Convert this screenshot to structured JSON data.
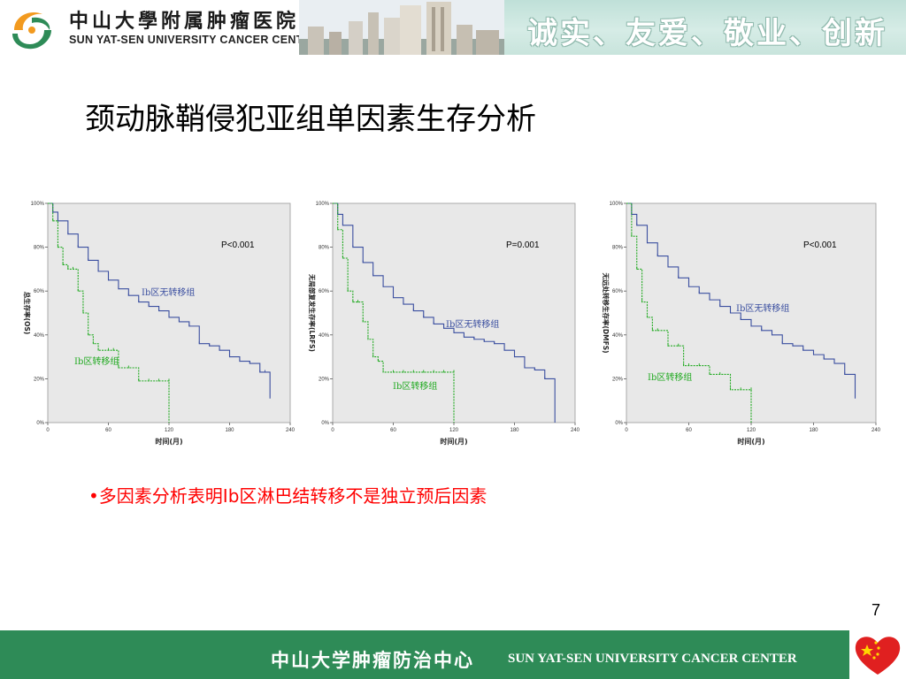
{
  "header": {
    "org_cn": "中山大學附属肿瘤医院",
    "org_en": "SUN YAT-SEN UNIVERSITY CANCER CENTER",
    "motto": "诚实、友爱、敬业、创新"
  },
  "title": "颈动脉鞘侵犯亚组单因素生存分析",
  "bullet": "•多因素分析表明Ⅰb区淋巴结转移不是独立预后因素",
  "page_number": "7",
  "footer": {
    "cn": "中山大学肿瘤防治中心",
    "en": "SUN YAT-SEN UNIVERSITY CANCER CENTER"
  },
  "colors": {
    "blue": "#3b4fa0",
    "green": "#22aa22",
    "panel": "#e8e8e8",
    "footer": "#2e8b57",
    "bullet": "#ff0000"
  },
  "chart_data": [
    {
      "type": "line",
      "ylabel": "总生存率(OS)",
      "xlabel": "时间(月)",
      "pvalue": "P<0.001",
      "xlim": [
        0,
        240
      ],
      "ylim": [
        0,
        100
      ],
      "xticks": [
        "0",
        "60",
        "120",
        "180",
        "240"
      ],
      "yticks": [
        "0%",
        "20%",
        "40%",
        "60%",
        "80%",
        "100%"
      ],
      "series": [
        {
          "name": "Ⅰb区无转移组",
          "color": "#3b4fa0",
          "x": [
            0,
            5,
            10,
            20,
            30,
            40,
            50,
            60,
            70,
            80,
            90,
            100,
            110,
            120,
            130,
            140,
            150,
            160,
            170,
            180,
            190,
            200,
            210,
            215,
            220
          ],
          "y": [
            100,
            96,
            92,
            86,
            80,
            74,
            69,
            65,
            61,
            58,
            55,
            53,
            51,
            48,
            46,
            44,
            36,
            35,
            33,
            30,
            28,
            27,
            23,
            23,
            11
          ]
        },
        {
          "name": "Ⅰb区转移组",
          "color": "#22aa22",
          "x": [
            0,
            5,
            10,
            15,
            20,
            25,
            30,
            35,
            40,
            45,
            50,
            60,
            65,
            70,
            80,
            90,
            100,
            110,
            120,
            120
          ],
          "y": [
            100,
            92,
            80,
            72,
            70,
            70,
            60,
            50,
            40,
            36,
            33,
            33,
            33,
            25,
            25,
            19,
            19,
            19,
            19,
            0
          ]
        }
      ]
    },
    {
      "type": "line",
      "ylabel": "无局部复发生存率(LRFS)",
      "xlabel": "时间(月)",
      "pvalue": "P=0.001",
      "xlim": [
        0,
        240
      ],
      "ylim": [
        0,
        100
      ],
      "xticks": [
        "0",
        "60",
        "120",
        "180",
        "240"
      ],
      "yticks": [
        "0%",
        "20%",
        "40%",
        "60%",
        "80%",
        "100%"
      ],
      "series": [
        {
          "name": "Ⅰb区无转移组",
          "color": "#3b4fa0",
          "x": [
            0,
            5,
            10,
            20,
            30,
            40,
            50,
            60,
            70,
            80,
            90,
            100,
            110,
            120,
            130,
            140,
            150,
            160,
            170,
            180,
            190,
            200,
            210,
            220
          ],
          "y": [
            100,
            95,
            90,
            80,
            73,
            67,
            62,
            57,
            54,
            51,
            48,
            45,
            43,
            41,
            39,
            38,
            37,
            36,
            33,
            30,
            25,
            24,
            20,
            0
          ]
        },
        {
          "name": "Ⅰb区转移组",
          "color": "#22aa22",
          "x": [
            0,
            5,
            10,
            15,
            20,
            25,
            30,
            35,
            40,
            45,
            50,
            60,
            70,
            80,
            90,
            100,
            110,
            120,
            120
          ],
          "y": [
            100,
            88,
            75,
            60,
            55,
            55,
            46,
            38,
            30,
            28,
            23,
            23,
            23,
            23,
            23,
            23,
            23,
            23,
            0
          ]
        }
      ]
    },
    {
      "type": "line",
      "ylabel": "无远处转移生存率(DMFS)",
      "xlabel": "时间(月)",
      "pvalue": "P<0.001",
      "xlim": [
        0,
        240
      ],
      "ylim": [
        0,
        100
      ],
      "xticks": [
        "0",
        "60",
        "120",
        "180",
        "240"
      ],
      "yticks": [
        "0%",
        "20%",
        "40%",
        "60%",
        "80%",
        "100%"
      ],
      "series": [
        {
          "name": "Ⅰb区无转移组",
          "color": "#3b4fa0",
          "x": [
            0,
            5,
            10,
            20,
            30,
            40,
            50,
            60,
            70,
            80,
            90,
            100,
            110,
            120,
            130,
            140,
            150,
            160,
            170,
            180,
            190,
            200,
            210,
            220
          ],
          "y": [
            100,
            95,
            90,
            82,
            76,
            71,
            66,
            62,
            59,
            56,
            53,
            50,
            47,
            44,
            42,
            40,
            36,
            35,
            33,
            31,
            29,
            27,
            22,
            11
          ]
        },
        {
          "name": "Ⅰb区转移组",
          "color": "#22aa22",
          "x": [
            0,
            5,
            10,
            15,
            20,
            25,
            30,
            40,
            50,
            55,
            60,
            70,
            80,
            90,
            100,
            110,
            120,
            120
          ],
          "y": [
            100,
            85,
            70,
            55,
            48,
            42,
            42,
            35,
            35,
            26,
            26,
            26,
            22,
            22,
            15,
            15,
            15,
            0
          ]
        }
      ]
    }
  ]
}
